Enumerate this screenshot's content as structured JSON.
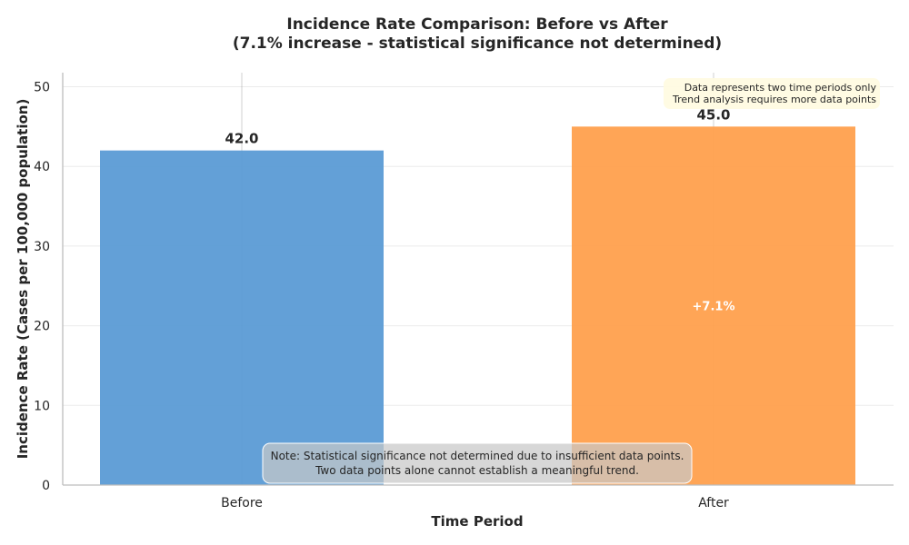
{
  "chart_data": {
    "type": "bar",
    "title": "Incidence Rate Comparison: Before vs After",
    "subtitle": "(7.1% increase - statistical significance not determined)",
    "xlabel": "Time Period",
    "ylabel": "Incidence Rate (Cases per 100,000 population)",
    "categories": [
      "Before",
      "After"
    ],
    "values": [
      42.0,
      45.0
    ],
    "value_labels": [
      "42.0",
      "45.0"
    ],
    "colors": [
      "#5b9bd5",
      "#ffa04d"
    ],
    "ylim": [
      0,
      52
    ],
    "yticks": [
      0,
      10,
      20,
      30,
      40,
      50
    ],
    "grid": true,
    "change_label": "+7.1%",
    "note_lines": [
      "Note: Statistical significance not determined due to insufficient data points.",
      "Two data points alone cannot establish a meaningful trend."
    ],
    "corner_note_lines": [
      "Data represents two time periods only",
      "Trend analysis requires more data points"
    ],
    "corner_note_placement": "top-right"
  }
}
